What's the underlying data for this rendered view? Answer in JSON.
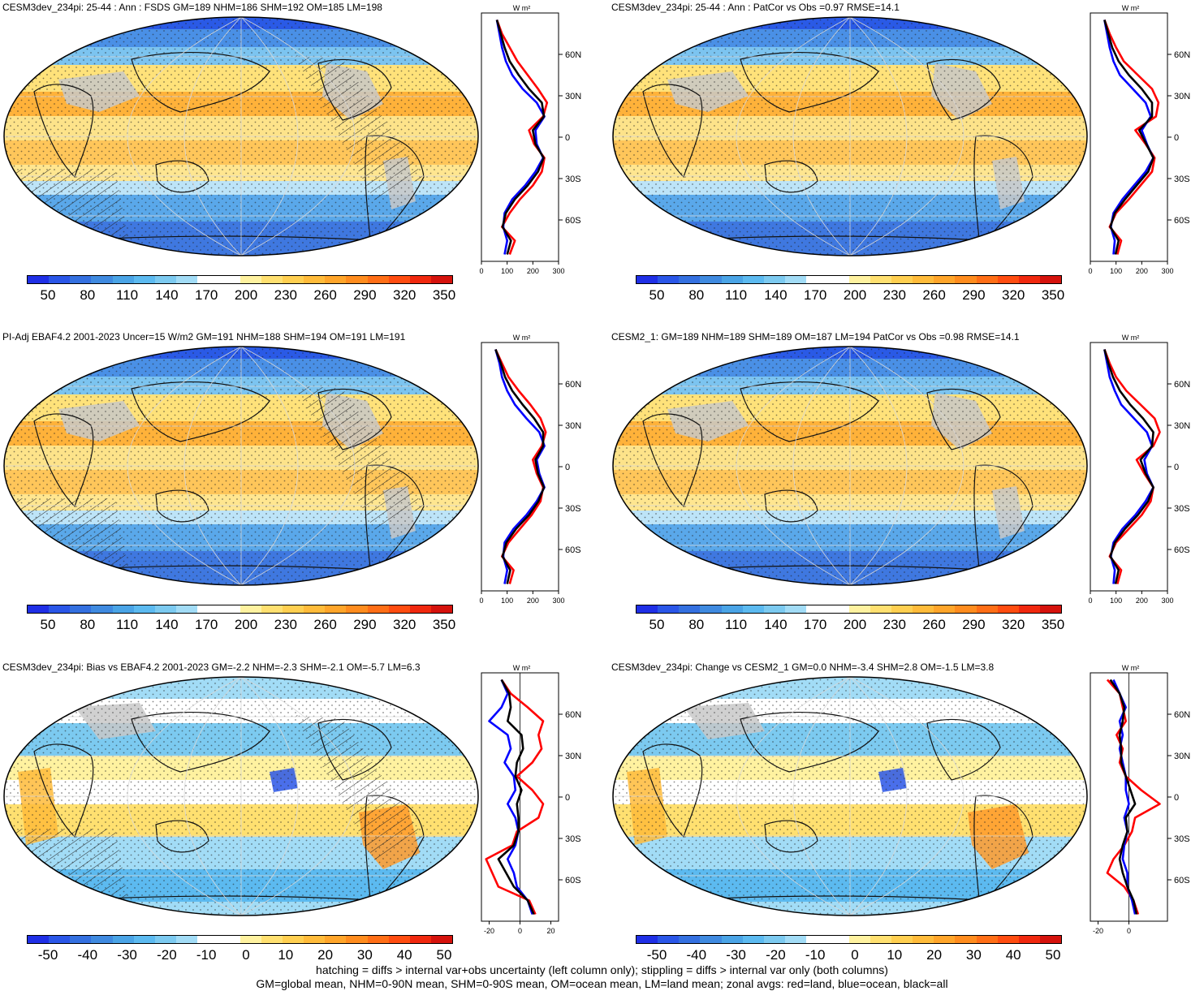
{
  "panels": [
    {
      "title": "CESM3dev_234pi: 25-44 : Ann : FSDS GM=189 NHM=186 SHM=192 OM=185 LM=198",
      "type": "abs",
      "colorbar_labels": [
        "50",
        "80",
        "110",
        "140",
        "170",
        "200",
        "230",
        "260",
        "290",
        "320",
        "350"
      ],
      "profile_xticks": [
        "0",
        "100",
        "200",
        "300"
      ],
      "profile_unit": "W m²",
      "hatched": true,
      "zonal": {
        "lat": [
          85,
          75,
          65,
          55,
          45,
          35,
          25,
          15,
          5,
          -5,
          -15,
          -25,
          -35,
          -45,
          -55,
          -65,
          -75,
          -85
        ],
        "red": [
          60,
          80,
          110,
          140,
          180,
          220,
          255,
          240,
          185,
          205,
          245,
          235,
          200,
          150,
          110,
          80,
          130,
          110
        ],
        "blue": [
          60,
          70,
          80,
          95,
          120,
          160,
          215,
          245,
          210,
          215,
          240,
          210,
          170,
          120,
          90,
          85,
          100,
          90
        ],
        "black": [
          60,
          75,
          90,
          110,
          145,
          185,
          235,
          243,
          200,
          210,
          242,
          220,
          180,
          130,
          95,
          82,
          115,
          100
        ]
      }
    },
    {
      "title": "CESM3dev_234pi: 25-44 : Ann : PatCor vs Obs =0.97 RMSE=14.1",
      "type": "abs",
      "colorbar_labels": [
        "50",
        "80",
        "110",
        "140",
        "170",
        "200",
        "230",
        "260",
        "290",
        "320",
        "350"
      ],
      "profile_xticks": [
        "0",
        "100",
        "200",
        "300"
      ],
      "profile_unit": "W m²",
      "hatched": false,
      "zonal": {
        "lat": [
          85,
          75,
          65,
          55,
          45,
          35,
          25,
          15,
          5,
          -5,
          -15,
          -25,
          -35,
          -45,
          -55,
          -65,
          -75,
          -85
        ],
        "red": [
          55,
          75,
          100,
          130,
          185,
          240,
          265,
          255,
          175,
          215,
          250,
          240,
          195,
          150,
          100,
          75,
          120,
          105
        ],
        "blue": [
          55,
          65,
          75,
          90,
          115,
          165,
          215,
          235,
          200,
          220,
          245,
          215,
          170,
          125,
          90,
          80,
          95,
          90
        ],
        "black": [
          55,
          70,
          85,
          110,
          150,
          200,
          240,
          240,
          190,
          218,
          245,
          225,
          180,
          135,
          95,
          78,
          110,
          98
        ]
      }
    },
    {
      "title": "PI-Adj EBAF4.2 2001-2023 Uncer=15 W/m2 GM=191 NHM=188 SHM=194 OM=191 LM=191",
      "type": "abs",
      "colorbar_labels": [
        "50",
        "80",
        "110",
        "140",
        "170",
        "200",
        "230",
        "260",
        "290",
        "320",
        "350"
      ],
      "profile_xticks": [
        "0",
        "100",
        "200",
        "300"
      ],
      "profile_unit": "W m²",
      "hatched": true,
      "zonal": {
        "lat": [
          85,
          75,
          65,
          55,
          45,
          35,
          25,
          15,
          5,
          -5,
          -15,
          -25,
          -35,
          -45,
          -55,
          -65,
          -75,
          -85
        ],
        "red": [
          55,
          80,
          105,
          145,
          190,
          230,
          250,
          235,
          200,
          215,
          240,
          230,
          195,
          150,
          105,
          80,
          125,
          110
        ],
        "blue": [
          55,
          70,
          80,
          100,
          130,
          175,
          225,
          245,
          215,
          225,
          245,
          215,
          175,
          125,
          90,
          85,
          100,
          90
        ],
        "black": [
          55,
          75,
          92,
          120,
          160,
          205,
          240,
          240,
          210,
          220,
          243,
          222,
          185,
          135,
          97,
          82,
          112,
          100
        ]
      }
    },
    {
      "title": "CESM2_1: GM=189 NHM=189 SHM=189 OM=187 LM=194 PatCor vs Obs =0.98 RMSE=14.1",
      "type": "abs",
      "colorbar_labels": [
        "50",
        "80",
        "110",
        "140",
        "170",
        "200",
        "230",
        "260",
        "290",
        "320",
        "350"
      ],
      "profile_xticks": [
        "0",
        "100",
        "200",
        "300"
      ],
      "profile_unit": "W m²",
      "hatched": false,
      "zonal": {
        "lat": [
          85,
          75,
          65,
          55,
          45,
          35,
          25,
          15,
          5,
          -5,
          -15,
          -25,
          -35,
          -45,
          -55,
          -65,
          -75,
          -85
        ],
        "red": [
          55,
          75,
          100,
          140,
          195,
          250,
          270,
          245,
          180,
          210,
          245,
          235,
          200,
          150,
          100,
          75,
          120,
          105
        ],
        "blue": [
          55,
          65,
          75,
          95,
          120,
          170,
          220,
          240,
          210,
          220,
          245,
          215,
          175,
          125,
          90,
          80,
          95,
          90
        ],
        "black": [
          55,
          70,
          88,
          115,
          155,
          205,
          245,
          240,
          195,
          215,
          245,
          225,
          185,
          135,
          95,
          78,
          110,
          98
        ]
      }
    },
    {
      "title": "CESM3dev_234pi: Bias vs EBAF4.2 2001-2023 GM=-2.2 NHM=-2.3 SHM=-2.1 OM=-5.7 LM=6.3",
      "type": "diff",
      "colorbar_labels": [
        "-50",
        "-40",
        "-30",
        "-20",
        "-10",
        "0",
        "10",
        "20",
        "30",
        "40",
        "50"
      ],
      "profile_xticks": [
        "-20",
        "0",
        "20"
      ],
      "profile_unit": "W m²",
      "hatched": true,
      "zonal": {
        "lat": [
          85,
          75,
          65,
          55,
          45,
          35,
          25,
          15,
          5,
          -5,
          -15,
          -25,
          -35,
          -45,
          -55,
          -65,
          -75,
          -85
        ],
        "red": [
          -12,
          -6,
          5,
          15,
          12,
          14,
          8,
          -2,
          8,
          15,
          12,
          -2,
          -5,
          -22,
          -18,
          -14,
          6,
          10
        ],
        "blue": [
          -12,
          -8,
          -12,
          -20,
          -8,
          -6,
          -10,
          -4,
          -3,
          -8,
          -3,
          -1,
          -3,
          -8,
          -4,
          -2,
          5,
          8
        ],
        "black": [
          -12,
          -7,
          -6,
          -8,
          1,
          2,
          -2,
          -3,
          1,
          -2,
          -1,
          -1,
          -4,
          -14,
          -9,
          -4,
          5,
          9
        ]
      }
    },
    {
      "title": "CESM3dev_234pi: Change vs CESM2_1 GM=0.0 NHM=-3.4 SHM=2.8 OM=-1.5 LM=3.8",
      "type": "diff",
      "colorbar_labels": [
        "-50",
        "-40",
        "-30",
        "-20",
        "-10",
        "0",
        "10",
        "20",
        "30",
        "40",
        "50"
      ],
      "profile_xticks": [
        "-20",
        "0"
      ],
      "profile_unit": "W m²",
      "hatched": false,
      "zonal": {
        "lat": [
          85,
          75,
          65,
          55,
          45,
          35,
          25,
          15,
          5,
          -5,
          -15,
          -25,
          -35,
          -45,
          -55,
          -65,
          -75,
          -85
        ],
        "red": [
          -14,
          -6,
          -4,
          -2,
          -8,
          -4,
          -6,
          -2,
          8,
          20,
          4,
          2,
          -3,
          -10,
          -14,
          -3,
          3,
          6
        ],
        "blue": [
          -10,
          -6,
          -2,
          -6,
          -4,
          -6,
          -4,
          -2,
          -2,
          0,
          -3,
          -1,
          -3,
          -4,
          -1,
          -1,
          2,
          4
        ],
        "black": [
          -12,
          -6,
          -3,
          -4,
          -6,
          -5,
          -5,
          -2,
          1,
          4,
          -2,
          -1,
          -4,
          -6,
          -4,
          -1,
          3,
          5
        ]
      }
    }
  ],
  "profile_lat_ticks": [
    "60N",
    "30N",
    "0",
    "30S",
    "60S"
  ],
  "colors": {
    "abs": [
      "#1f2fe6",
      "#2a56e8",
      "#3470e0",
      "#3f8ae0",
      "#4aa4e6",
      "#5cbaf0",
      "#7ccaf0",
      "#a2dcf6",
      "#ffffff",
      "#ffffff",
      "#fff2a0",
      "#ffe070",
      "#ffcf50",
      "#ffbb3a",
      "#ffa52a",
      "#ff8c1e",
      "#ff6e16",
      "#ff4c10",
      "#f0280e",
      "#d5120c"
    ],
    "diff": [
      "#1f2fe6",
      "#2a56e8",
      "#3470e0",
      "#3f8ae0",
      "#4aa4e6",
      "#5cbaf0",
      "#7ccaf0",
      "#a2dcf6",
      "#ffffff",
      "#ffffff",
      "#fff2a0",
      "#ffe070",
      "#ffcf50",
      "#ffbb3a",
      "#ffa52a",
      "#ff8c1e",
      "#ff6e16",
      "#ff4c10",
      "#f0280e",
      "#d5120c"
    ],
    "line_red": "#ff0000",
    "line_blue": "#0000ff",
    "line_black": "#000000"
  },
  "footer": {
    "line1": "hatching = diffs > internal var+obs uncertainty (left column only); stippling = diffs > internal var only (both columns)",
    "line2": "GM=global mean, NHM=0-90N mean, SHM=0-90S mean, OM=ocean mean, LM=land mean; zonal avgs: red=land, blue=ocean, black=all"
  }
}
